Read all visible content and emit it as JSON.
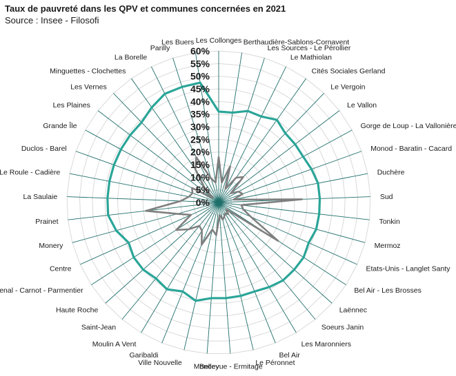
{
  "title": "Taux de pauvreté dans les QPV et communes concernées en 2021",
  "source": "Source : Insee - Filosofi",
  "chart_data": {
    "type": "radar",
    "title": "Taux de pauvreté dans les QPV et communes concernées en 2021",
    "categories": [
      "Les Collonges",
      "Berthaudière-Sablons-Cornavent",
      "Les Sources - Le Pérollier",
      "Le Mathiolan",
      "Cités Sociales Gerland",
      "Le Vergoin",
      "Le Vallon",
      "Gorge de Loup - La Vallonière",
      "Monod - Baratin - Cacard",
      "Duchère",
      "Sud",
      "Tonkin",
      "Mermoz",
      "Etats-Unis - Langlet Santy",
      "Bel Air - Les Brosses",
      "Laënnec",
      "Soeurs Janin",
      "Les Maronniers",
      "Bel Air",
      "Le Péronnet",
      "Bellevue - Ermitage",
      "Moncey",
      "Ville Nouvelle",
      "Garibaldi",
      "Moulin A Vent",
      "Saint-Jean",
      "Haute Roche",
      "Arsenal - Carnot - Parmentier",
      "Centre",
      "Monery",
      "Prainet",
      "La Saulaie",
      "Le Roule - Cadière",
      "Duclos - Barel",
      "Grande Île",
      "Les Plaines",
      "Les Vernes",
      "Minguettes - Clochettes",
      "La Borelle",
      "Parilly",
      "Les Buers"
    ],
    "series": [
      {
        "color": "#7f7f7f",
        "values": [
          18,
          8,
          15,
          6,
          12,
          14,
          6,
          9,
          10,
          6,
          33,
          9,
          10,
          14,
          28,
          4,
          6,
          5,
          6,
          7,
          5,
          13,
          11,
          18,
          13,
          12,
          16,
          20,
          12,
          17,
          29,
          15,
          12,
          11,
          12,
          3,
          8,
          16,
          20,
          10,
          8
        ]
      },
      {
        "color": "#2aa598",
        "values": [
          36,
          36,
          38,
          38,
          40,
          38,
          38,
          38,
          39,
          40,
          40,
          40,
          40,
          39,
          40,
          40,
          40,
          39,
          38,
          38,
          38,
          38,
          40,
          38,
          40,
          39,
          40,
          40,
          39,
          42,
          44,
          44,
          44,
          44,
          44,
          44,
          44,
          46,
          48,
          48,
          48
        ]
      }
    ],
    "r_ticks": [
      "0%",
      "5%",
      "10%",
      "15%",
      "20%",
      "25%",
      "30%",
      "35%",
      "40%",
      "45%",
      "50%",
      "55%",
      "60%"
    ],
    "rlim": [
      0,
      60
    ],
    "grid": true,
    "legend": "none"
  }
}
